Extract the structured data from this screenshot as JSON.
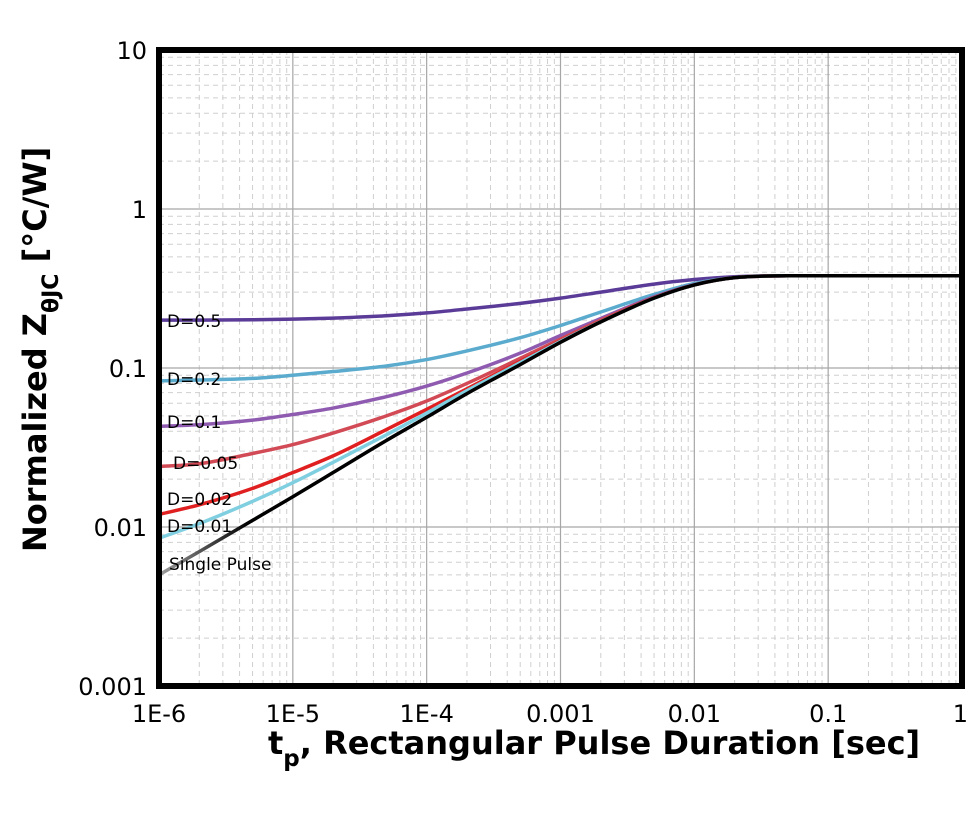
{
  "chart_data": {
    "type": "line",
    "x_scale": "log",
    "y_scale": "log",
    "xlim": [
      1e-06,
      1
    ],
    "ylim": [
      0.001,
      10
    ],
    "grid": true,
    "x_ticks": [
      {
        "value": 1e-06,
        "label": "1E-6"
      },
      {
        "value": 1e-05,
        "label": "1E-5"
      },
      {
        "value": 0.0001,
        "label": "1E-4"
      },
      {
        "value": 0.001,
        "label": "0.001"
      },
      {
        "value": 0.01,
        "label": "0.01"
      },
      {
        "value": 0.1,
        "label": "0.1"
      },
      {
        "value": 1,
        "label": "1"
      }
    ],
    "y_ticks": [
      {
        "value": 0.001,
        "label": "0.001"
      },
      {
        "value": 0.01,
        "label": "0.01"
      },
      {
        "value": 0.1,
        "label": "0.1"
      },
      {
        "value": 1,
        "label": "1"
      },
      {
        "value": 10,
        "label": "10"
      }
    ],
    "xlabel": {
      "main": "t",
      "sub": "p",
      "rest": ", Rectangular Pulse Duration [sec]"
    },
    "ylabel": {
      "main": "Normalized Z",
      "sub": "θJC",
      "rest": " [°C/W]"
    },
    "series": [
      {
        "name": "D=0.5",
        "color": "#5b3b98",
        "x": [
          1e-06,
          2e-06,
          5e-06,
          1e-05,
          2e-05,
          5e-05,
          0.0001,
          0.0002,
          0.0005,
          0.001,
          0.002,
          0.005,
          0.01,
          0.02,
          0.05,
          0.1,
          0.2,
          0.5,
          1
        ],
        "y": [
          0.2,
          0.2,
          0.201,
          0.203,
          0.206,
          0.213,
          0.222,
          0.235,
          0.255,
          0.275,
          0.3,
          0.337,
          0.36,
          0.375,
          0.38,
          0.38,
          0.38,
          0.38,
          0.38
        ]
      },
      {
        "name": "D=0.2",
        "color": "#5aabcd",
        "x": [
          1e-06,
          2e-06,
          5e-06,
          1e-05,
          2e-05,
          5e-05,
          0.0001,
          0.0002,
          0.0005,
          0.001,
          0.002,
          0.005,
          0.01,
          0.02,
          0.05,
          0.1,
          0.2,
          0.5,
          1
        ],
        "y": [
          0.083,
          0.084,
          0.086,
          0.09,
          0.095,
          0.103,
          0.113,
          0.128,
          0.155,
          0.185,
          0.225,
          0.29,
          0.34,
          0.37,
          0.38,
          0.38,
          0.38,
          0.38,
          0.38
        ]
      },
      {
        "name": "D=0.1",
        "color": "#8e5bb0",
        "x": [
          1e-06,
          2e-06,
          5e-06,
          1e-05,
          2e-05,
          5e-05,
          0.0001,
          0.0002,
          0.0005,
          0.001,
          0.002,
          0.005,
          0.01,
          0.02,
          0.05,
          0.1,
          0.2,
          0.5,
          1
        ],
        "y": [
          0.043,
          0.044,
          0.047,
          0.051,
          0.056,
          0.066,
          0.077,
          0.093,
          0.124,
          0.16,
          0.205,
          0.28,
          0.335,
          0.37,
          0.38,
          0.38,
          0.38,
          0.38,
          0.38
        ]
      },
      {
        "name": "D=0.05",
        "color": "#d24a55",
        "x": [
          1e-06,
          2e-06,
          5e-06,
          1e-05,
          2e-05,
          5e-05,
          0.0001,
          0.0002,
          0.0005,
          0.001,
          0.002,
          0.005,
          0.01,
          0.02,
          0.05,
          0.1,
          0.2,
          0.5,
          1
        ],
        "y": [
          0.024,
          0.025,
          0.029,
          0.033,
          0.039,
          0.05,
          0.062,
          0.08,
          0.115,
          0.152,
          0.2,
          0.277,
          0.333,
          0.37,
          0.38,
          0.38,
          0.38,
          0.38,
          0.38
        ]
      },
      {
        "name": "D=0.02",
        "color": "#e02020",
        "x": [
          1e-06,
          2e-06,
          5e-06,
          1e-05,
          2e-05,
          5e-05,
          0.0001,
          0.0002,
          0.0005,
          0.001,
          0.002,
          0.005,
          0.01,
          0.02,
          0.05,
          0.1,
          0.2,
          0.5,
          1
        ],
        "y": [
          0.012,
          0.0138,
          0.0175,
          0.022,
          0.028,
          0.041,
          0.055,
          0.074,
          0.11,
          0.148,
          0.197,
          0.276,
          0.333,
          0.37,
          0.38,
          0.38,
          0.38,
          0.38,
          0.38
        ]
      },
      {
        "name": "D=0.01",
        "color": "#7fcfe0",
        "x": [
          1e-06,
          2e-06,
          5e-06,
          1e-05,
          2e-05,
          5e-05,
          0.0001,
          0.0002,
          0.0005,
          0.001,
          0.002,
          0.005,
          0.01,
          0.02,
          0.05,
          0.1,
          0.2,
          0.5,
          1
        ],
        "y": [
          0.0085,
          0.0105,
          0.0145,
          0.019,
          0.0255,
          0.038,
          0.052,
          0.072,
          0.108,
          0.147,
          0.196,
          0.275,
          0.333,
          0.37,
          0.38,
          0.38,
          0.38,
          0.38,
          0.38
        ]
      },
      {
        "name": "Single Pulse",
        "color": "#000000",
        "start_color": "#a0a0a0",
        "x": [
          1e-06,
          2e-06,
          5e-06,
          1e-05,
          2e-05,
          5e-05,
          0.0001,
          0.0002,
          0.0005,
          0.001,
          0.002,
          0.005,
          0.01,
          0.02,
          0.05,
          0.1,
          0.2,
          0.5,
          1
        ],
        "y": [
          0.005,
          0.007,
          0.011,
          0.0155,
          0.022,
          0.035,
          0.049,
          0.069,
          0.105,
          0.145,
          0.195,
          0.275,
          0.333,
          0.37,
          0.38,
          0.38,
          0.38,
          0.38,
          0.38
        ]
      }
    ]
  }
}
